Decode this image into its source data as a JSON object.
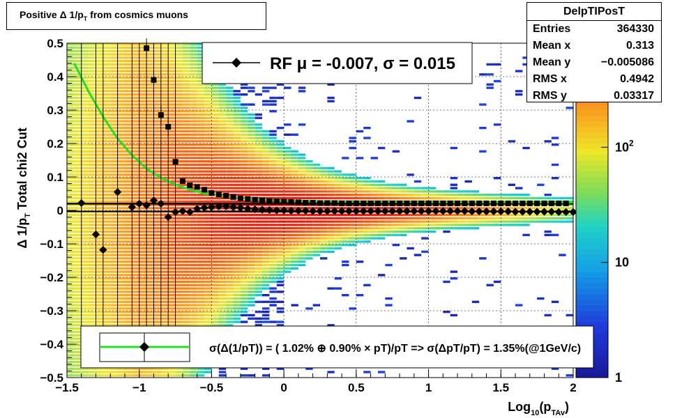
{
  "title": "Positive Δ 1/p",
  "title_sub": "T",
  "title_rest": " from cosmics muons",
  "stats": {
    "name": "DelpTIPosT",
    "rows": [
      {
        "label": "Entries",
        "value": "364330"
      },
      {
        "label": "Mean x",
        "value": "0.313"
      },
      {
        "label": "Mean y",
        "value": "−0.005086"
      },
      {
        "label": "RMS x",
        "value": "0.4942"
      },
      {
        "label": "RMS y",
        "value": "0.03317"
      }
    ]
  },
  "legend_top": {
    "text": "RF μ = -0.007, σ =   0.015"
  },
  "legend_bottom": {
    "text": "σ(Δ(1/pT)) = ( 1.02% ⊕  0.90% × pT)/pT => σ(ΔpT/pT) =  1.35%(@1GeV/c)"
  },
  "colors": {
    "fit_curve": "#20e020",
    "mean_line": "#000000",
    "heatmap_high": "#e02010",
    "heatmap_low": "#1a1a9a"
  },
  "chart_data": {
    "type": "heatmap",
    "xlabel": "Log",
    "xlabel_sub": "10",
    "xlabel_mid": "(p",
    "xlabel_sub2": "TAv",
    "xlabel_end": ")",
    "ylabel": "Δ 1/p",
    "ylabel_sub": "T",
    "ylabel_rest": "  Total chi2 Cut",
    "xlim": [
      -1.5,
      2.0
    ],
    "ylim": [
      -0.5,
      0.5
    ],
    "xticks": [
      -1.5,
      -1,
      -0.5,
      0,
      0.5,
      1,
      1.5,
      2
    ],
    "xtick_labels": [
      "−1.5",
      "−1",
      "−0.5",
      "0",
      "0.5",
      "1",
      "1.5",
      "2"
    ],
    "yticks": [
      -0.5,
      -0.4,
      -0.3,
      -0.2,
      -0.1,
      0,
      0.1,
      0.2,
      0.3,
      0.4,
      0.5
    ],
    "ytick_labels": [
      "−0.5",
      "−0.4",
      "−0.3",
      "−0.2",
      "−0.1",
      "0",
      "0.1",
      "0.2",
      "0.3",
      "0.4",
      "0.5"
    ],
    "grid": true,
    "z_scale": "log",
    "zlim": [
      1,
      800
    ],
    "z_tick_labels": [
      {
        "z": 1,
        "text": "1"
      },
      {
        "z": 10,
        "text": "10"
      },
      {
        "z": 100,
        "text": "10",
        "sup": "2"
      }
    ],
    "mean_points": [
      {
        "x": -1.4,
        "y": 0.022
      },
      {
        "x": -1.3,
        "y": -0.072
      },
      {
        "x": -1.25,
        "y": -0.118
      },
      {
        "x": -1.15,
        "y": 0.055
      },
      {
        "x": -1.05,
        "y": 0.01
      },
      {
        "x": -1.0,
        "y": 0.02
      },
      {
        "x": -0.95,
        "y": 0.015
      },
      {
        "x": -0.9,
        "y": 0.03
      },
      {
        "x": -0.85,
        "y": 0.02
      },
      {
        "x": -0.8,
        "y": -0.02
      },
      {
        "x": -0.75,
        "y": -0.005
      },
      {
        "x": -0.7,
        "y": -0.002
      },
      {
        "x": -0.65,
        "y": -0.005
      },
      {
        "x": -0.6,
        "y": 0.005
      },
      {
        "x": -0.55,
        "y": 0.008
      },
      {
        "x": -0.5,
        "y": 0.01
      },
      {
        "x": -0.45,
        "y": 0.012
      },
      {
        "x": -0.4,
        "y": 0.012
      },
      {
        "x": -0.35,
        "y": 0.01
      },
      {
        "x": -0.3,
        "y": 0.008
      },
      {
        "x": -0.25,
        "y": 0.005
      },
      {
        "x": -0.2,
        "y": 0.003
      },
      {
        "x": -0.15,
        "y": 0.002
      },
      {
        "x": -0.1,
        "y": 0.001
      },
      {
        "x": -0.05,
        "y": 0.0
      },
      {
        "x": 0.0,
        "y": 0.0
      },
      {
        "x": 0.05,
        "y": -0.001
      },
      {
        "x": 0.1,
        "y": -0.001
      },
      {
        "x": 0.15,
        "y": -0.001
      },
      {
        "x": 0.2,
        "y": -0.002
      },
      {
        "x": 0.25,
        "y": -0.002
      },
      {
        "x": 0.3,
        "y": -0.002
      },
      {
        "x": 0.35,
        "y": -0.002
      },
      {
        "x": 0.4,
        "y": -0.002
      },
      {
        "x": 0.45,
        "y": -0.002
      },
      {
        "x": 0.5,
        "y": -0.002
      },
      {
        "x": 0.55,
        "y": -0.002
      },
      {
        "x": 0.6,
        "y": -0.002
      },
      {
        "x": 0.65,
        "y": -0.002
      },
      {
        "x": 0.7,
        "y": -0.002
      },
      {
        "x": 0.75,
        "y": -0.002
      },
      {
        "x": 0.8,
        "y": -0.002
      },
      {
        "x": 0.85,
        "y": -0.002
      },
      {
        "x": 0.9,
        "y": -0.002
      },
      {
        "x": 0.95,
        "y": -0.002
      },
      {
        "x": 1.0,
        "y": -0.002
      },
      {
        "x": 1.05,
        "y": -0.002
      },
      {
        "x": 1.1,
        "y": -0.002
      },
      {
        "x": 1.15,
        "y": -0.002
      },
      {
        "x": 1.2,
        "y": -0.002
      },
      {
        "x": 1.25,
        "y": -0.002
      },
      {
        "x": 1.3,
        "y": -0.003
      },
      {
        "x": 1.35,
        "y": -0.003
      },
      {
        "x": 1.4,
        "y": -0.003
      },
      {
        "x": 1.45,
        "y": -0.003
      },
      {
        "x": 1.5,
        "y": -0.003
      },
      {
        "x": 1.55,
        "y": -0.003
      },
      {
        "x": 1.6,
        "y": -0.004
      },
      {
        "x": 1.65,
        "y": -0.004
      },
      {
        "x": 1.7,
        "y": -0.004
      },
      {
        "x": 1.75,
        "y": -0.004
      },
      {
        "x": 1.8,
        "y": -0.004
      },
      {
        "x": 1.85,
        "y": -0.004
      },
      {
        "x": 1.9,
        "y": -0.005
      },
      {
        "x": 1.95,
        "y": -0.005
      },
      {
        "x": 2.0,
        "y": -0.005
      }
    ],
    "sigma_points": [
      {
        "x": -0.95,
        "y": 0.485
      },
      {
        "x": -0.9,
        "y": 0.39
      },
      {
        "x": -0.85,
        "y": 0.285
      },
      {
        "x": -0.8,
        "y": 0.25
      },
      {
        "x": -0.75,
        "y": 0.145
      },
      {
        "x": -0.7,
        "y": 0.088
      },
      {
        "x": -0.65,
        "y": 0.075
      },
      {
        "x": -0.6,
        "y": 0.07
      },
      {
        "x": -0.55,
        "y": 0.062
      },
      {
        "x": -0.5,
        "y": 0.052
      },
      {
        "x": -0.45,
        "y": 0.048
      },
      {
        "x": -0.4,
        "y": 0.044
      },
      {
        "x": -0.35,
        "y": 0.04
      },
      {
        "x": -0.3,
        "y": 0.036
      },
      {
        "x": -0.25,
        "y": 0.034
      },
      {
        "x": -0.2,
        "y": 0.032
      },
      {
        "x": -0.15,
        "y": 0.03
      },
      {
        "x": -0.1,
        "y": 0.028
      },
      {
        "x": -0.05,
        "y": 0.027
      },
      {
        "x": 0.0,
        "y": 0.026
      },
      {
        "x": 0.05,
        "y": 0.025
      },
      {
        "x": 0.1,
        "y": 0.024
      },
      {
        "x": 0.15,
        "y": 0.023
      },
      {
        "x": 0.2,
        "y": 0.023
      },
      {
        "x": 0.25,
        "y": 0.022
      },
      {
        "x": 0.3,
        "y": 0.022
      },
      {
        "x": 0.35,
        "y": 0.022
      },
      {
        "x": 0.4,
        "y": 0.021
      },
      {
        "x": 0.45,
        "y": 0.021
      },
      {
        "x": 0.5,
        "y": 0.021
      },
      {
        "x": 0.55,
        "y": 0.021
      },
      {
        "x": 0.6,
        "y": 0.021
      },
      {
        "x": 0.65,
        "y": 0.021
      },
      {
        "x": 0.7,
        "y": 0.021
      },
      {
        "x": 0.75,
        "y": 0.021
      },
      {
        "x": 0.8,
        "y": 0.021
      },
      {
        "x": 0.85,
        "y": 0.021
      },
      {
        "x": 0.9,
        "y": 0.021
      },
      {
        "x": 0.95,
        "y": 0.021
      },
      {
        "x": 1.0,
        "y": 0.021
      },
      {
        "x": 1.05,
        "y": 0.021
      },
      {
        "x": 1.1,
        "y": 0.021
      },
      {
        "x": 1.15,
        "y": 0.021
      },
      {
        "x": 1.2,
        "y": 0.021
      },
      {
        "x": 1.25,
        "y": 0.021
      },
      {
        "x": 1.3,
        "y": 0.021
      },
      {
        "x": 1.35,
        "y": 0.021
      },
      {
        "x": 1.4,
        "y": 0.021
      },
      {
        "x": 1.45,
        "y": 0.021
      },
      {
        "x": 1.5,
        "y": 0.021
      },
      {
        "x": 1.55,
        "y": 0.021
      },
      {
        "x": 1.6,
        "y": 0.021
      },
      {
        "x": 1.65,
        "y": 0.021
      },
      {
        "x": 1.7,
        "y": 0.021
      },
      {
        "x": 1.75,
        "y": 0.021
      },
      {
        "x": 1.8,
        "y": 0.021
      },
      {
        "x": 1.85,
        "y": 0.021
      },
      {
        "x": 1.9,
        "y": 0.021
      },
      {
        "x": 1.95,
        "y": 0.021
      }
    ],
    "fit_curve": {
      "x": [
        -1.45,
        -1.35,
        -1.25,
        -1.15,
        -1.05,
        -0.95,
        -0.85,
        -0.75,
        -0.65,
        -0.55,
        -0.45,
        -0.35,
        -0.25,
        -0.1,
        0.1,
        0.4,
        0.8,
        1.2,
        1.6,
        2.0
      ],
      "y": [
        0.44,
        0.355,
        0.28,
        0.215,
        0.165,
        0.125,
        0.097,
        0.077,
        0.062,
        0.051,
        0.044,
        0.039,
        0.035,
        0.031,
        0.028,
        0.026,
        0.025,
        0.024,
        0.024,
        0.024
      ]
    },
    "mean_line": {
      "x": [
        -1.5,
        2.0
      ],
      "y": [
        0.02,
        0.02
      ]
    }
  }
}
